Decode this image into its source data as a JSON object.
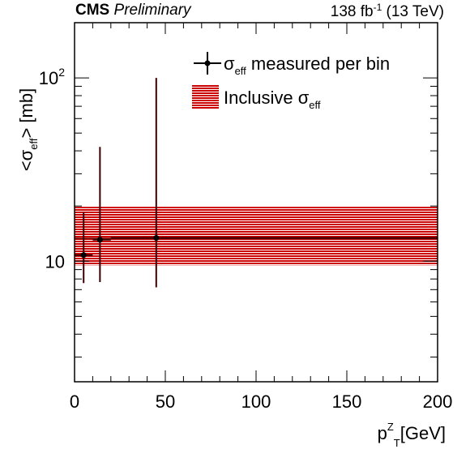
{
  "header": {
    "experiment": "CMS",
    "status": "Preliminary",
    "lumi_value": "138 fb",
    "lumi_exp": "-1",
    "energy": "(13 TeV)"
  },
  "chart_data": {
    "type": "scatter",
    "xlabel": {
      "main": "p",
      "sup": "Z",
      "sub": "T",
      "unit": "[GeV]"
    },
    "ylabel": {
      "open": "<σ",
      "sub": "eff",
      "close": "> [mb]"
    },
    "xlim": [
      0,
      200
    ],
    "ylim": [
      2.2,
      200
    ],
    "yscale": "log",
    "grid": false,
    "legend_position": "top-right",
    "x_ticks": [
      0,
      50,
      100,
      150,
      200
    ],
    "y_ticks": [
      {
        "value": 10,
        "base": "10",
        "exp": ""
      },
      {
        "value": 100,
        "base": "10",
        "exp": "2"
      }
    ],
    "series": [
      {
        "name": {
          "sym": "σ",
          "sub": "eff",
          "rest": " measured per bin"
        },
        "kind": "points",
        "color": "#000000",
        "bar_color": "#3a0000",
        "points": [
          {
            "x": 5,
            "xlow": 0,
            "xhigh": 10,
            "y": 10.8,
            "ylow": 7.6,
            "yhigh": 18.5
          },
          {
            "x": 14,
            "xlow": 10,
            "xhigh": 20,
            "y": 13.1,
            "ylow": 7.7,
            "yhigh": 42
          },
          {
            "x": 45,
            "xlow": 20,
            "xhigh": 200,
            "y": 13.4,
            "ylow": 7.2,
            "yhigh": 100
          }
        ]
      },
      {
        "name": {
          "sym": "σ",
          "sub": "eff",
          "prefix": "Inclusive "
        },
        "kind": "band",
        "color": "#cc0000",
        "center_color": "#7a0000",
        "y": 13.3,
        "ylow": 9.5,
        "yhigh": 19.8,
        "xrange": [
          0,
          200
        ]
      }
    ]
  }
}
